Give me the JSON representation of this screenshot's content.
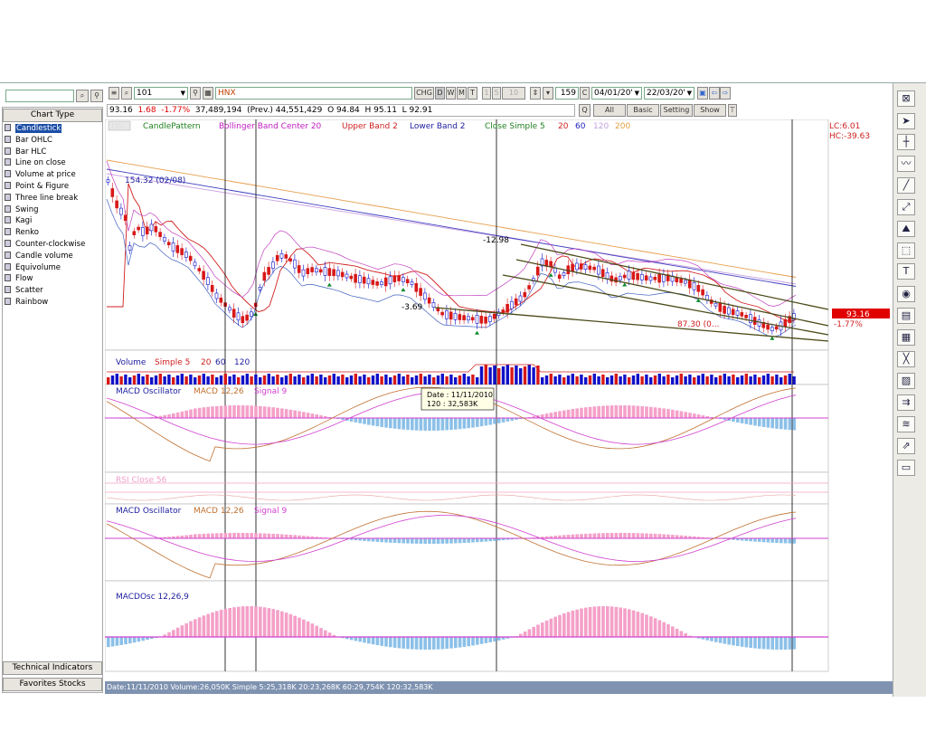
{
  "toolbar": {
    "symbol": "101",
    "exchange": "HNX",
    "chg_label": "CHG",
    "periods": [
      "D",
      "W",
      "M",
      "T"
    ],
    "intervals": [
      "1",
      "5",
      "10"
    ],
    "bars": "159",
    "c_label": "C",
    "date_from": "04/01/20'",
    "date_to": "22/03/20'",
    "quote": {
      "last": "93.16",
      "change": "1.68",
      "pct": "-1.77%",
      "volume": "37,489,194",
      "prev": "(Prev.) 44,551,429",
      "open": "O 94.84",
      "high": "H 95.11",
      "low": "L 92.91"
    },
    "q_label": "Q",
    "filter_buttons": [
      "All",
      "Basic",
      "Setting",
      "Show"
    ]
  },
  "left_panel": {
    "header": "Chart Type",
    "items": [
      "Candlestick",
      "Bar OHLC",
      "Bar HLC",
      "Line on close",
      "Volume at price",
      "Point & Figure",
      "Three line break",
      "Swing",
      "Kagi",
      "Renko",
      "Counter-clockwise",
      "Candle volume",
      "Equivolume",
      "Flow",
      "Scatter",
      "Rainbow"
    ],
    "selected": "Candlestick",
    "bottom_buttons": [
      "Technical Indicators",
      "Favorites Stocks"
    ]
  },
  "legend": {
    "main_hidden": "101",
    "candle": "CandlePattern",
    "bb_center": "Bollinger Band Center 20",
    "bb_upper": "Upper Band 2",
    "bb_lower": "Lower Band 2",
    "ma_label": "Close Simple 5",
    "ma_20": "20",
    "ma_60": "60",
    "ma_120": "120",
    "ma_200": "200",
    "lc": "LC:6.01",
    "hc": "HC:-39.63"
  },
  "annotations": {
    "peak_left": "154.32 (02/08)",
    "high_mid": "-12.98",
    "low_mid": "-3.69",
    "low_right": "87.30 (0...",
    "price_tag": "93.16",
    "price_pct": "-1.77%"
  },
  "panels": {
    "volume": {
      "title": "Volume",
      "ma": "Simple 5",
      "p1": "20",
      "p2": "60",
      "p3": "120"
    },
    "macd1": {
      "title": "MACD Oscillator",
      "macd": "MACD 12,26",
      "signal": "Signal 9"
    },
    "rsi": {
      "title": "RSI Close 56"
    },
    "macd2": {
      "title": "MACD Oscillator",
      "macd": "MACD 12,26",
      "signal": "Signal 9"
    },
    "macdosc": {
      "title": "MACDOsc 12,26,9"
    }
  },
  "tooltip": {
    "date": "Date : 11/11/2010",
    "value": "120 : 32,583K"
  },
  "status_bar": "Date:11/11/2010  Volume:26,050K  Simple 5:25,318K  20:23,268K  60:29,754K  120:32,583K",
  "colors": {
    "up": "#1010c8",
    "down": "#d81818",
    "macd_pos": "#f4a0c8",
    "macd_neg": "#8cc0e8"
  }
}
